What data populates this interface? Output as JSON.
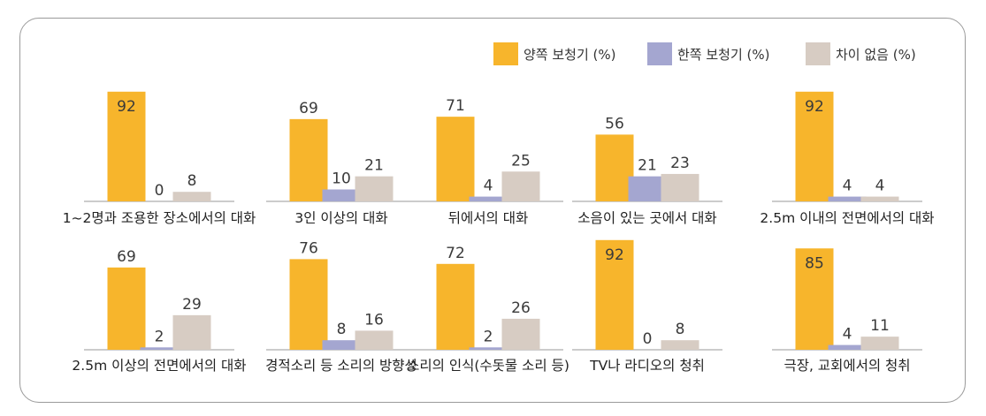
{
  "colors": {
    "bilateral": "#F7B52C",
    "unilateral": "#A4A6D0",
    "no_difference": "#D7CCC3",
    "baseline": "#999999"
  },
  "chart_data": {
    "type": "bar",
    "legend": {
      "position": "top-right",
      "entries": [
        "양쪽 보청기 (%)",
        "한쪽 보청기 (%)",
        "차이 없음 (%)"
      ]
    },
    "series_keys": [
      "bilateral",
      "unilateral",
      "no_difference"
    ],
    "panels": [
      {
        "category": "1~2명과 조용한 장소에서의 대화",
        "values": [
          92,
          0,
          8
        ]
      },
      {
        "category": "3인 이상의 대화",
        "values": [
          69,
          10,
          21
        ]
      },
      {
        "category": "뒤에서의 대화",
        "values": [
          71,
          4,
          25
        ]
      },
      {
        "category": "소음이 있는 곳에서 대화",
        "values": [
          56,
          21,
          23
        ]
      },
      {
        "category": "2.5m 이내의 전면에서의 대화",
        "values": [
          92,
          4,
          4
        ]
      },
      {
        "category": "2.5m 이상의 전면에서의 대화",
        "values": [
          69,
          2,
          29
        ]
      },
      {
        "category": "경적소리 등 소리의 방향성",
        "values": [
          76,
          8,
          16
        ]
      },
      {
        "category": "소리의 인식(수돗물 소리 등)",
        "values": [
          72,
          2,
          26
        ]
      },
      {
        "category": "TV나 라디오의 청취",
        "values": [
          92,
          0,
          8
        ]
      },
      {
        "category": "극장, 교회에서의 청취",
        "values": [
          85,
          4,
          11
        ]
      }
    ]
  }
}
